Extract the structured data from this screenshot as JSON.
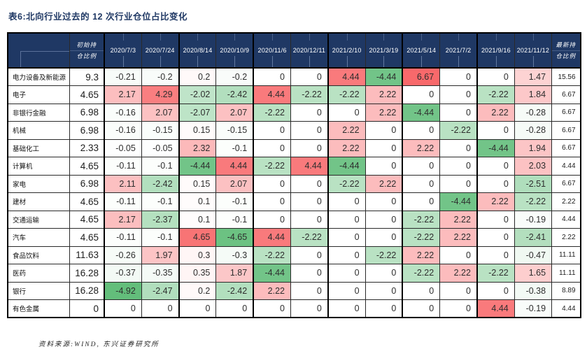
{
  "title": "表6:北向行业过去的 12 次行业仓位占比变化",
  "source_note": "资料来源:WIND, 东兴证券研究所",
  "colors": {
    "header_bg": "#1f3864",
    "header_text": "#ffffff",
    "title_color": "#1f3864",
    "scale_red": "#f8696b",
    "scale_green": "#63be7b",
    "scale_mid": "#ffffff",
    "border_thin": "#2a2a2a",
    "border_thick": "#000000"
  },
  "table": {
    "corner_label": "",
    "initial_header": [
      "初始持",
      "仓比例"
    ],
    "latest_header": [
      "最新持",
      "仓比例"
    ],
    "date_headers": [
      "2020/7/3",
      "2020/7/24",
      "2020/8/14",
      "2020/10/9",
      "2020/11/6",
      "2020/12/11",
      "2021/2/10",
      "2021/3/19",
      "2021/5/14",
      "2021/7/2",
      "2021/9/16",
      "2021/11/12"
    ],
    "rows": [
      {
        "industry": "电力设备及新能源",
        "initial": "9.3",
        "changes": [
          "-0.21",
          "-0.2",
          "0.2",
          "-0.2",
          "0",
          "0",
          "4.44",
          "-4.44",
          "6.67",
          "0",
          "0",
          "1.47"
        ],
        "latest": "15.56"
      },
      {
        "industry": "电子",
        "initial": "4.65",
        "changes": [
          "2.17",
          "4.29",
          "-2.02",
          "-2.42",
          "4.44",
          "-2.22",
          "-2.22",
          "2.22",
          "0",
          "0",
          "-2.22",
          "1.84"
        ],
        "latest": "6.67"
      },
      {
        "industry": "非银行金融",
        "initial": "6.98",
        "changes": [
          "-0.16",
          "2.07",
          "-2.07",
          "2.07",
          "-2.22",
          "0",
          "0",
          "2.22",
          "-4.44",
          "0",
          "2.22",
          "-0.28"
        ],
        "latest": "6.67"
      },
      {
        "industry": "机械",
        "initial": "6.98",
        "changes": [
          "-0.16",
          "-0.15",
          "0.15",
          "-0.15",
          "0",
          "0",
          "2.22",
          "0",
          "0",
          "-2.22",
          "0",
          "-0.28"
        ],
        "latest": "6.67"
      },
      {
        "industry": "基础化工",
        "initial": "2.33",
        "changes": [
          "-0.05",
          "-0.05",
          "2.32",
          "-0.1",
          "0",
          "0",
          "2.22",
          "0",
          "2.22",
          "0",
          "-4.44",
          "1.94"
        ],
        "latest": "6.67"
      },
      {
        "industry": "计算机",
        "initial": "4.65",
        "changes": [
          "-0.11",
          "-0.1",
          "-4.44",
          "4.44",
          "-2.22",
          "4.44",
          "-4.44",
          "0",
          "0",
          "0",
          "0",
          "2.03"
        ],
        "latest": "4.44"
      },
      {
        "industry": "家电",
        "initial": "6.98",
        "changes": [
          "2.11",
          "-2.42",
          "0.15",
          "2.07",
          "0",
          "0",
          "-2.22",
          "2.22",
          "0",
          "0",
          "0",
          "-2.51"
        ],
        "latest": "6.67"
      },
      {
        "industry": "建材",
        "initial": "4.65",
        "changes": [
          "-0.11",
          "-0.1",
          "0.1",
          "-0.1",
          "0",
          "0",
          "0",
          "0",
          "0",
          "-4.44",
          "2.22",
          "-2.22"
        ],
        "latest": "2.22"
      },
      {
        "industry": "交通运输",
        "initial": "4.65",
        "changes": [
          "2.17",
          "-2.37",
          "0.1",
          "-0.1",
          "0",
          "0",
          "0",
          "0",
          "-2.22",
          "2.22",
          "0",
          "-0.19"
        ],
        "latest": "4.44"
      },
      {
        "industry": "汽车",
        "initial": "4.65",
        "changes": [
          "-0.11",
          "-0.1",
          "4.65",
          "-4.65",
          "4.44",
          "-2.22",
          "0",
          "0",
          "-2.22",
          "2.22",
          "0",
          "-2.41"
        ],
        "latest": "2.22"
      },
      {
        "industry": "食品饮料",
        "initial": "11.63",
        "changes": [
          "-0.26",
          "1.97",
          "0.3",
          "-0.3",
          "-2.22",
          "0",
          "0",
          "-2.22",
          "2.22",
          "0",
          "0",
          "-0.47"
        ],
        "latest": "11.11"
      },
      {
        "industry": "医药",
        "initial": "16.28",
        "changes": [
          "-0.37",
          "-0.35",
          "0.35",
          "1.87",
          "-4.44",
          "0",
          "0",
          "0",
          "-2.22",
          "2.22",
          "-2.22",
          "1.65"
        ],
        "latest": "11.11"
      },
      {
        "industry": "银行",
        "initial": "16.28",
        "changes": [
          "-4.92",
          "-2.47",
          "0.2",
          "-2.42",
          "2.22",
          "0",
          "0",
          "0",
          "0",
          "0",
          "0",
          "-0.38"
        ],
        "latest": "8.89"
      },
      {
        "industry": "有色金属",
        "initial": "0",
        "changes": [
          "0",
          "0",
          "0",
          "0",
          "0",
          "0",
          "0",
          "0",
          "0",
          "0",
          "4.44",
          "-0.19"
        ],
        "latest": "4.44"
      }
    ],
    "column_widths": {
      "label": 88,
      "initial": 50,
      "date": 53.3,
      "latest": 41
    },
    "color_scale": {
      "positive_full_at": 5,
      "negative_full_at": 4.92
    }
  }
}
